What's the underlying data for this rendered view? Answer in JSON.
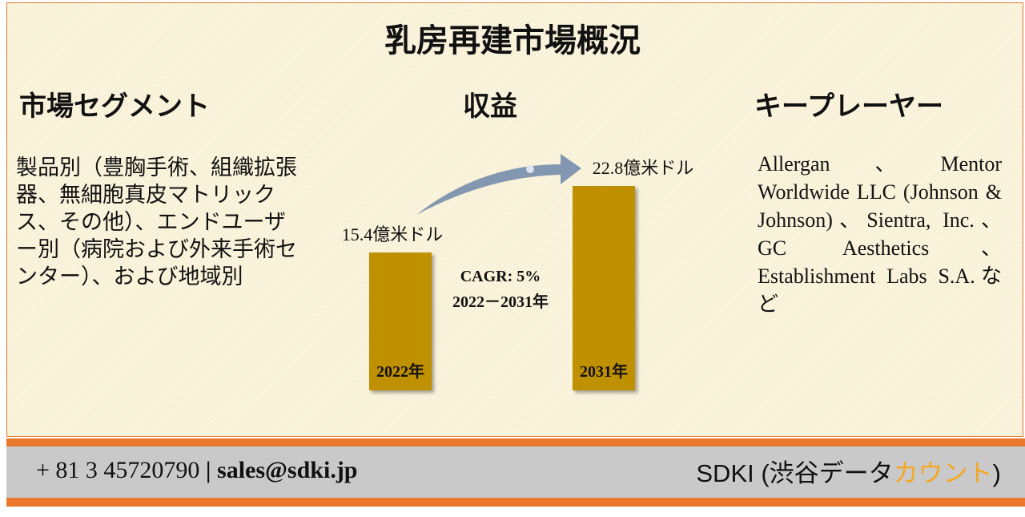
{
  "title": "乳房再建市場概況",
  "segment": {
    "heading": "市場セグメント",
    "text": "製品別（豊胸手術、組織拡張器、無細胞真皮マトリックス、その他）、エンドユーザー別（病院および外来手術センター）、および地域別"
  },
  "revenue": {
    "heading": "収益",
    "chart": {
      "type": "bar",
      "categories": [
        "2022年",
        "2031年"
      ],
      "values": [
        15.4,
        22.8
      ],
      "value_labels": [
        "15.4億米ドル",
        "22.8億米ドル"
      ],
      "color": "#bf9000",
      "cagr": "CAGR: 5%",
      "period": "2022－2031年"
    }
  },
  "players": {
    "heading": "キープレーヤー",
    "text": "Allergan、Mentor Worldwide LLC (Johnson & Johnson)、Sientra, Inc.、GC Aesthetics、Establishment Labs S.A.など"
  },
  "footer": {
    "phone": "+ 81 3 45720790",
    "separator": "|",
    "email": "sales@sdki.jp",
    "brand_prefix": "SDKI (渋谷データ",
    "brand_highlight": "カウント",
    "brand_suffix": ")"
  }
}
